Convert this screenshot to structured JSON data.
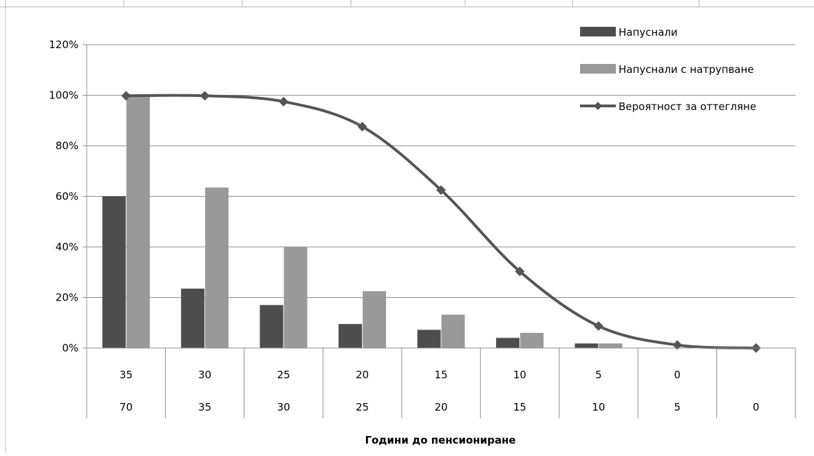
{
  "chart_data": {
    "type": "bar",
    "xlabel": "Години до пенсиониране",
    "ylabel": "",
    "ylim": [
      0,
      1.2
    ],
    "y_ticks": [
      0,
      0.2,
      0.4,
      0.6,
      0.8,
      1.0,
      1.2
    ],
    "y_tick_labels": [
      "0%",
      "20%",
      "40%",
      "60%",
      "80%",
      "100%",
      "120%"
    ],
    "grid": "horizontal",
    "legend_position": "top-right",
    "category_rows": [
      [
        "35",
        "30",
        "25",
        "20",
        "15",
        "10",
        "5",
        "0",
        ""
      ],
      [
        "70",
        "35",
        "30",
        "25",
        "20",
        "15",
        "10",
        "5",
        "0"
      ]
    ],
    "series": [
      {
        "name": "Напуснали",
        "type": "bar",
        "color": "#4d4d4d",
        "values": [
          0.6,
          0.235,
          0.17,
          0.095,
          0.072,
          0.04,
          0.018,
          0,
          0
        ]
      },
      {
        "name": "Напуснали с натрупване",
        "type": "bar",
        "color": "#999999",
        "values": [
          1.0,
          0.635,
          0.4,
          0.225,
          0.132,
          0.06,
          0.018,
          0,
          0
        ]
      },
      {
        "name": "Вероятност за оттегляне",
        "type": "line",
        "color": "#555555",
        "marker": "diamond",
        "values": [
          0.998,
          0.998,
          0.975,
          0.876,
          0.625,
          0.303,
          0.087,
          0.012,
          0.0
        ]
      }
    ]
  }
}
